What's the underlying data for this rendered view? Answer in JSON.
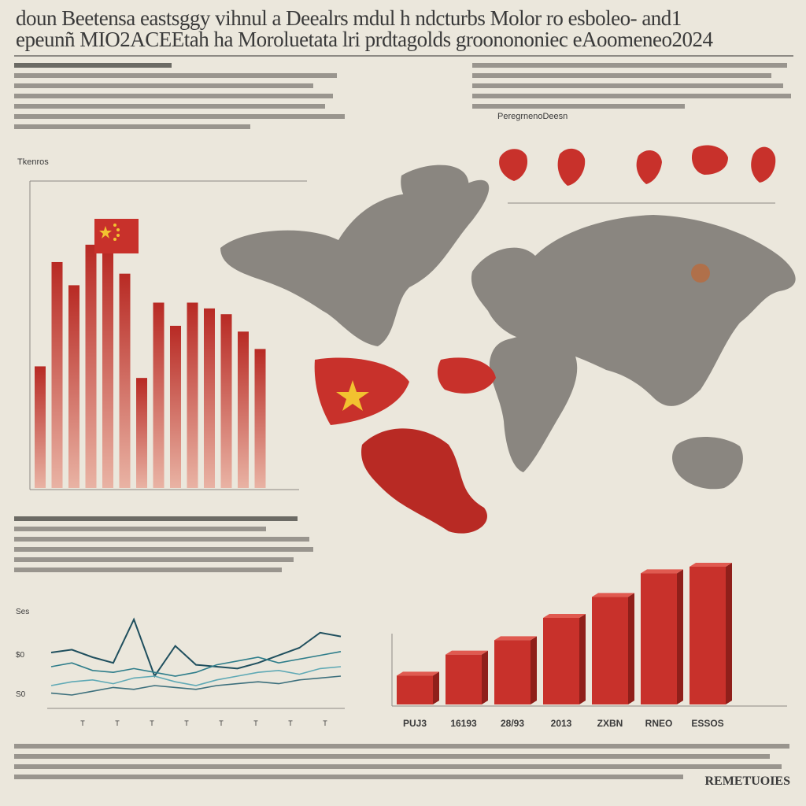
{
  "header": {
    "title_line1": "doun Beetensa eastsggy  vihnul a  Deealrs mdul h  ndcturbs Molor  ro esboleo- and1",
    "title_line2": "epeunñ MIO2ACEEtah ha Moroluetata lri prdtagolds  groonononiec eAoomeneo2024"
  },
  "left_panel": {
    "label": "Tkenros",
    "flag_icon": "china-flag-icon"
  },
  "right_panel": {
    "label": "PeregrnenoDeesn"
  },
  "colors": {
    "background": "#ebe7dc",
    "accent_red": "#c8312b",
    "map_grey": "#8a8680",
    "line_teal": "#2e7d8a",
    "line_dark": "#1f4f5e"
  },
  "chart_data": [
    {
      "type": "bar",
      "title": "",
      "values": [
        42,
        78,
        70,
        84,
        82,
        74,
        38,
        64,
        56,
        64,
        62,
        60,
        54,
        48
      ],
      "ylim": [
        0,
        100
      ],
      "grid": false
    },
    {
      "type": "line",
      "title": "",
      "x": [
        1,
        2,
        3,
        4,
        5,
        6,
        7,
        8,
        9,
        10,
        11,
        12,
        13,
        14,
        15
      ],
      "series": [
        {
          "values": [
            55,
            58,
            50,
            44,
            90,
            30,
            62,
            42,
            40,
            38,
            44,
            52,
            60,
            76,
            72
          ]
        },
        {
          "values": [
            40,
            44,
            36,
            34,
            38,
            34,
            30,
            34,
            42,
            46,
            50,
            44,
            48,
            52,
            56
          ]
        },
        {
          "values": [
            20,
            24,
            26,
            22,
            28,
            30,
            24,
            20,
            26,
            30,
            34,
            36,
            32,
            38,
            40
          ]
        },
        {
          "values": [
            12,
            10,
            14,
            18,
            16,
            20,
            18,
            16,
            20,
            22,
            24,
            22,
            26,
            28,
            30
          ]
        }
      ],
      "yticks": [
        "Ses",
        "$0",
        "S0"
      ],
      "categories": [
        "T",
        "T",
        "T",
        "T",
        "T",
        "T",
        "T",
        "T"
      ]
    },
    {
      "type": "bar",
      "title": "",
      "categories": [
        "PUJ3",
        "16193",
        "28/93",
        "2013",
        "ZXBN",
        "RNEO",
        "ESSOS"
      ],
      "values": [
        22,
        38,
        49,
        66,
        82,
        100,
        105
      ],
      "ylim": [
        0,
        120
      ]
    }
  ],
  "footer": {
    "source": "REMETUOIES"
  }
}
